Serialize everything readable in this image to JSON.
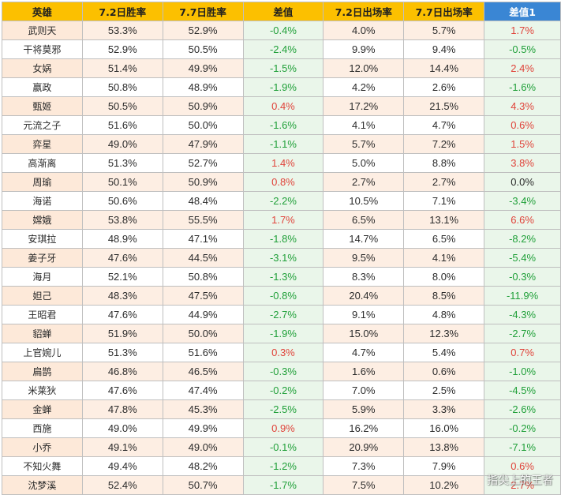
{
  "table": {
    "headers": [
      "英雄",
      "7.2日胜率",
      "7.7日胜率",
      "差值",
      "7.2日出场率",
      "7.7日出场率",
      "差值1"
    ],
    "rows": [
      [
        "武则天",
        "53.3%",
        "52.9%",
        "-0.4%",
        "4.0%",
        "5.7%",
        "1.7%"
      ],
      [
        "干将莫邪",
        "52.9%",
        "50.5%",
        "-2.4%",
        "9.9%",
        "9.4%",
        "-0.5%"
      ],
      [
        "女娲",
        "51.4%",
        "49.9%",
        "-1.5%",
        "12.0%",
        "14.4%",
        "2.4%"
      ],
      [
        "嬴政",
        "50.8%",
        "48.9%",
        "-1.9%",
        "4.2%",
        "2.6%",
        "-1.6%"
      ],
      [
        "甄姬",
        "50.5%",
        "50.9%",
        "0.4%",
        "17.2%",
        "21.5%",
        "4.3%"
      ],
      [
        "元流之子",
        "51.6%",
        "50.0%",
        "-1.6%",
        "4.1%",
        "4.7%",
        "0.6%"
      ],
      [
        "弈星",
        "49.0%",
        "47.9%",
        "-1.1%",
        "5.7%",
        "7.2%",
        "1.5%"
      ],
      [
        "高渐离",
        "51.3%",
        "52.7%",
        "1.4%",
        "5.0%",
        "8.8%",
        "3.8%"
      ],
      [
        "周瑜",
        "50.1%",
        "50.9%",
        "0.8%",
        "2.7%",
        "2.7%",
        "0.0%"
      ],
      [
        "海诺",
        "50.6%",
        "48.4%",
        "-2.2%",
        "10.5%",
        "7.1%",
        "-3.4%"
      ],
      [
        "嫦娥",
        "53.8%",
        "55.5%",
        "1.7%",
        "6.5%",
        "13.1%",
        "6.6%"
      ],
      [
        "安琪拉",
        "48.9%",
        "47.1%",
        "-1.8%",
        "14.7%",
        "6.5%",
        "-8.2%"
      ],
      [
        "姜子牙",
        "47.6%",
        "44.5%",
        "-3.1%",
        "9.5%",
        "4.1%",
        "-5.4%"
      ],
      [
        "海月",
        "52.1%",
        "50.8%",
        "-1.3%",
        "8.3%",
        "8.0%",
        "-0.3%"
      ],
      [
        "妲己",
        "48.3%",
        "47.5%",
        "-0.8%",
        "20.4%",
        "8.5%",
        "-11.9%"
      ],
      [
        "王昭君",
        "47.6%",
        "44.9%",
        "-2.7%",
        "9.1%",
        "4.8%",
        "-4.3%"
      ],
      [
        "貂蝉",
        "51.9%",
        "50.0%",
        "-1.9%",
        "15.0%",
        "12.3%",
        "-2.7%"
      ],
      [
        "上官婉儿",
        "51.3%",
        "51.6%",
        "0.3%",
        "4.7%",
        "5.4%",
        "0.7%"
      ],
      [
        "扁鹊",
        "46.8%",
        "46.5%",
        "-0.3%",
        "1.6%",
        "0.6%",
        "-1.0%"
      ],
      [
        "米莱狄",
        "47.6%",
        "47.4%",
        "-0.2%",
        "7.0%",
        "2.5%",
        "-4.5%"
      ],
      [
        "金蝉",
        "47.8%",
        "45.3%",
        "-2.5%",
        "5.9%",
        "3.3%",
        "-2.6%"
      ],
      [
        "西施",
        "49.0%",
        "49.9%",
        "0.9%",
        "16.2%",
        "16.0%",
        "-0.2%"
      ],
      [
        "小乔",
        "49.1%",
        "49.0%",
        "-0.1%",
        "20.9%",
        "13.8%",
        "-7.1%"
      ],
      [
        "不知火舞",
        "49.4%",
        "48.2%",
        "-1.2%",
        "7.3%",
        "7.9%",
        "0.6%"
      ],
      [
        "沈梦溪",
        "52.4%",
        "50.7%",
        "-1.7%",
        "7.5%",
        "10.2%",
        "2.7%"
      ]
    ]
  },
  "colors": {
    "header_bg": "#fcc000",
    "header_last_bg": "#3a86d4",
    "diff_bg": "#eaf6ea",
    "positive_text": "#e0443b",
    "negative_text": "#21a03a",
    "hero_stripe_bg": "#fde9d9"
  },
  "watermark": "指尖上的王者"
}
